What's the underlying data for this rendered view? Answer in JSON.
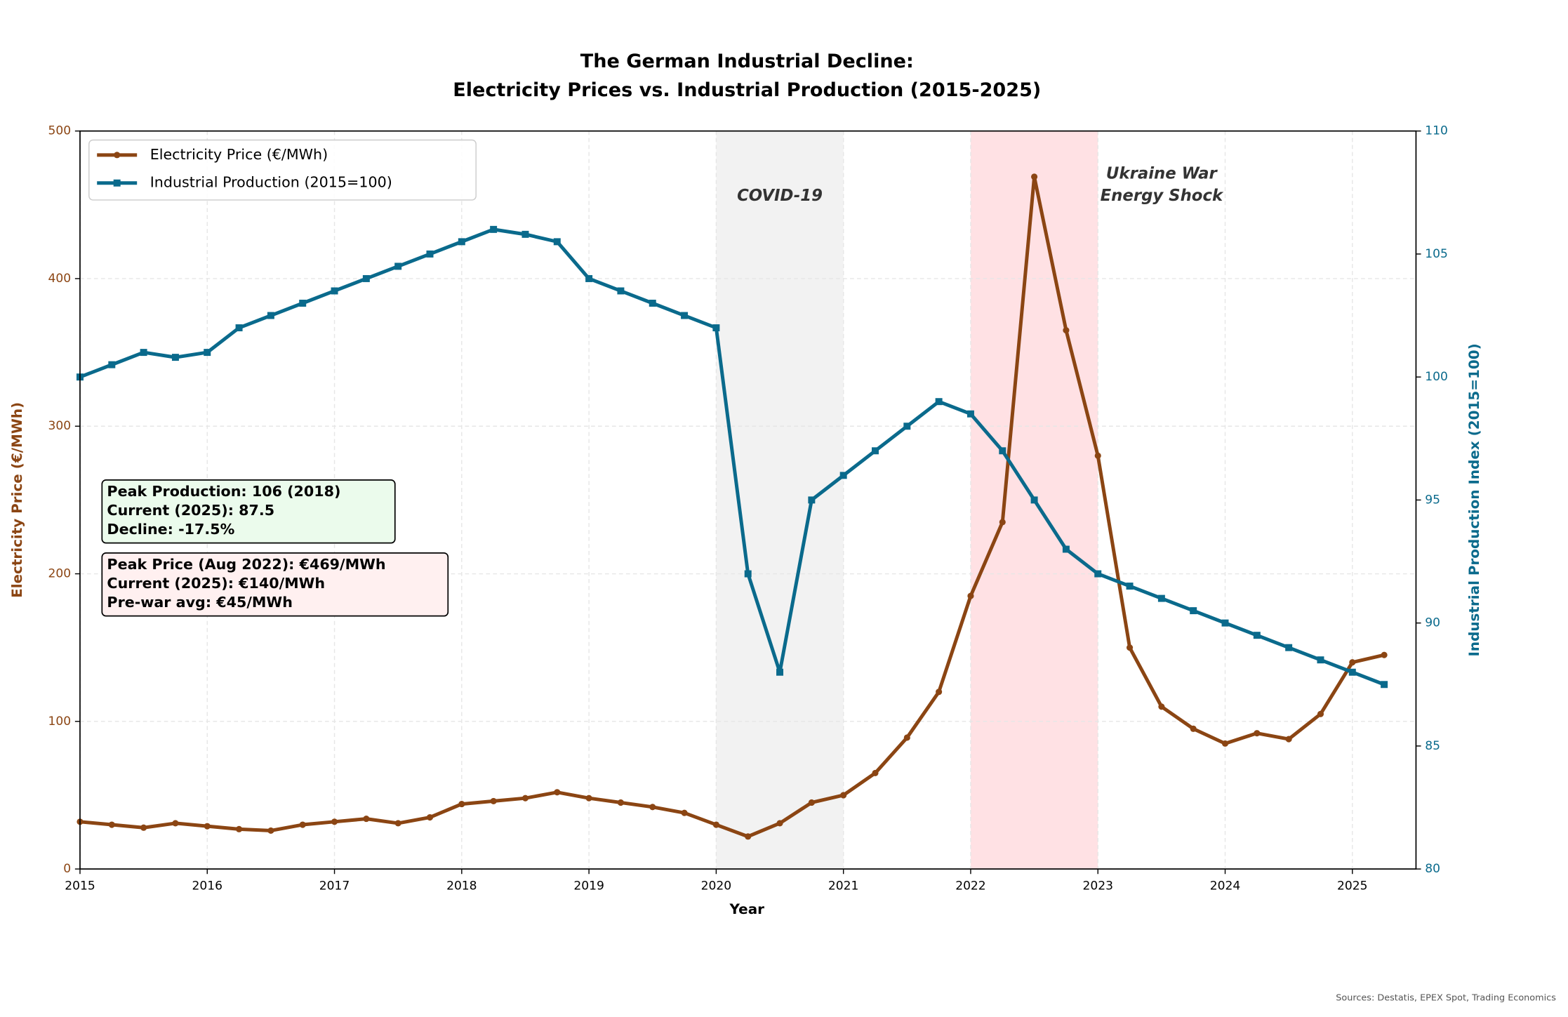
{
  "chart_data": {
    "type": "line",
    "title": [
      "The German Industrial Decline:",
      "Electricity Prices vs. Industrial Production (2015-2025)"
    ],
    "x_label": "Year",
    "y_label": "Electricity Price (€/MWh)",
    "y2_label": "Industrial Production Index (2015=100)",
    "x": [
      2015,
      2015.25,
      2015.5,
      2015.75,
      2016,
      2016.25,
      2016.5,
      2016.75,
      2017,
      2017.25,
      2017.5,
      2017.75,
      2018,
      2018.25,
      2018.5,
      2018.75,
      2019,
      2019.25,
      2019.5,
      2019.75,
      2020,
      2020.25,
      2020.5,
      2020.75,
      2021,
      2021.25,
      2021.5,
      2021.75,
      2022,
      2022.25,
      2022.5,
      2022.75,
      2023,
      2023.25,
      2023.5,
      2023.75,
      2024,
      2024.25,
      2024.5,
      2024.75,
      2025,
      2025.25
    ],
    "series": [
      {
        "name": "Electricity Price (€/MWh)",
        "color": "#8b4513",
        "marker": "circle",
        "values": [
          32,
          30,
          28,
          31,
          29,
          27,
          26,
          30,
          32,
          34,
          31,
          35,
          44,
          46,
          48,
          52,
          48,
          45,
          42,
          38,
          30,
          22,
          31,
          45,
          50,
          65,
          89,
          120,
          185,
          235,
          469,
          365,
          280,
          150,
          110,
          95,
          85,
          92,
          88,
          105,
          140,
          145
        ]
      },
      {
        "name": "Industrial Production (2015=100)",
        "color": "#0a6a8c",
        "marker": "square",
        "axis": "y2",
        "values": [
          100,
          100.5,
          101,
          100.8,
          101,
          102,
          102.5,
          103,
          103.5,
          104,
          104.5,
          105,
          105.5,
          106,
          105.8,
          105.5,
          104,
          103.5,
          103,
          102.5,
          102,
          92,
          88,
          95,
          96,
          97,
          98,
          99,
          98.5,
          97,
          95,
          93,
          92,
          91.5,
          91,
          90.5,
          90,
          89.5,
          89,
          88.5,
          88,
          87.5
        ]
      }
    ],
    "xlim": [
      2015,
      2025.5
    ],
    "xticks": [
      2015,
      2016,
      2017,
      2018,
      2019,
      2020,
      2021,
      2022,
      2023,
      2024,
      2025
    ],
    "ylim": [
      0,
      500
    ],
    "yticks": [
      0,
      100,
      200,
      300,
      400,
      500
    ],
    "y2lim": [
      80,
      110
    ],
    "y2ticks": [
      80,
      85,
      90,
      95,
      100,
      105,
      110
    ],
    "grid": true,
    "legend": "upper left",
    "shaded_periods": [
      {
        "start": 2020,
        "end": 2021,
        "color": "#f2f2f2",
        "label": [
          "COVID-19"
        ]
      },
      {
        "start": 2022,
        "end": 2023,
        "color": "#ffe1e4",
        "label": [
          "Ukraine War",
          "Energy Shock"
        ]
      }
    ],
    "info_boxes": [
      {
        "color": "#ebfbec",
        "lines": [
          "Peak Production: 106 (2018)",
          "Current (2025): 87.5",
          "Decline: -17.5%"
        ]
      },
      {
        "color": "#fff0f0",
        "lines": [
          "Peak Price (Aug 2022): €469/MWh",
          "Current (2025): €140/MWh",
          "Pre-war avg: €45/MWh"
        ]
      }
    ],
    "source": "Sources: Destatis, EPEX Spot, Trading Economics"
  }
}
